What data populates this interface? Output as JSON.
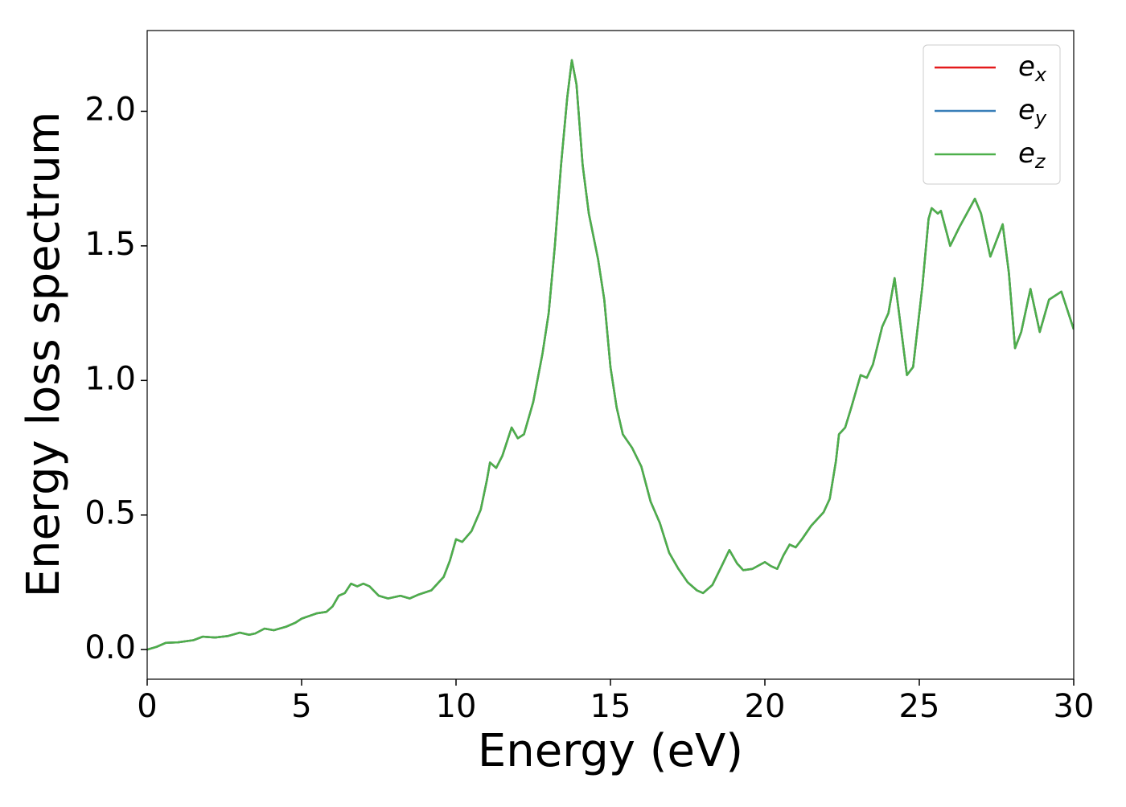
{
  "chart_data": {
    "type": "line",
    "xlabel": "Energy (eV)",
    "ylabel": "Energy loss spectrum",
    "x": [
      0,
      0.3,
      0.6,
      1.0,
      1.5,
      1.8,
      2.2,
      2.6,
      3.0,
      3.3,
      3.5,
      3.8,
      4.1,
      4.5,
      4.8,
      5.0,
      5.5,
      5.8,
      6.0,
      6.2,
      6.4,
      6.6,
      6.8,
      7.0,
      7.2,
      7.5,
      7.8,
      8.2,
      8.5,
      8.8,
      9.2,
      9.6,
      9.8,
      10.0,
      10.2,
      10.5,
      10.8,
      11.0,
      11.1,
      11.3,
      11.5,
      11.8,
      12.0,
      12.2,
      12.5,
      12.8,
      13.0,
      13.2,
      13.4,
      13.6,
      13.75,
      13.9,
      14.1,
      14.3,
      14.6,
      14.8,
      15.0,
      15.2,
      15.4,
      15.7,
      16.0,
      16.3,
      16.6,
      16.9,
      17.2,
      17.5,
      17.8,
      18.0,
      18.3,
      18.6,
      18.85,
      19.1,
      19.3,
      19.6,
      20.0,
      20.2,
      20.4,
      20.6,
      20.8,
      21.0,
      21.2,
      21.5,
      21.9,
      22.1,
      22.3,
      22.4,
      22.6,
      22.8,
      23.1,
      23.3,
      23.5,
      23.8,
      24.0,
      24.2,
      24.4,
      24.6,
      24.8,
      25.1,
      25.3,
      25.4,
      25.6,
      25.7,
      26.0,
      26.3,
      26.8,
      27.0,
      27.3,
      27.7,
      27.9,
      28.1,
      28.3,
      28.6,
      28.9,
      29.2,
      29.6,
      30.0
    ],
    "series": [
      {
        "name": "ex",
        "color": "#e41a1c",
        "values": [
          0,
          0.01,
          0.025,
          0.027,
          0.035,
          0.048,
          0.045,
          0.05,
          0.063,
          0.055,
          0.06,
          0.078,
          0.072,
          0.085,
          0.1,
          0.115,
          0.135,
          0.14,
          0.16,
          0.2,
          0.21,
          0.245,
          0.235,
          0.245,
          0.235,
          0.2,
          0.19,
          0.2,
          0.19,
          0.205,
          0.22,
          0.27,
          0.33,
          0.41,
          0.4,
          0.44,
          0.52,
          0.63,
          0.695,
          0.675,
          0.72,
          0.825,
          0.785,
          0.8,
          0.92,
          1.1,
          1.25,
          1.5,
          1.8,
          2.05,
          2.19,
          2.1,
          1.8,
          1.62,
          1.45,
          1.3,
          1.05,
          0.9,
          0.8,
          0.75,
          0.68,
          0.55,
          0.47,
          0.36,
          0.3,
          0.25,
          0.22,
          0.21,
          0.24,
          0.31,
          0.37,
          0.32,
          0.295,
          0.3,
          0.325,
          0.31,
          0.3,
          0.35,
          0.39,
          0.38,
          0.41,
          0.46,
          0.51,
          0.56,
          0.7,
          0.8,
          0.825,
          0.9,
          1.02,
          1.01,
          1.06,
          1.2,
          1.25,
          1.38,
          1.2,
          1.02,
          1.05,
          1.35,
          1.6,
          1.64,
          1.62,
          1.63,
          1.5,
          1.57,
          1.675,
          1.62,
          1.46,
          1.58,
          1.4,
          1.12,
          1.18,
          1.34,
          1.18,
          1.3,
          1.33,
          1.19
        ]
      },
      {
        "name": "ey",
        "color": "#377eb8",
        "values": [
          0,
          0.01,
          0.025,
          0.027,
          0.035,
          0.048,
          0.045,
          0.05,
          0.063,
          0.055,
          0.06,
          0.078,
          0.072,
          0.085,
          0.1,
          0.115,
          0.135,
          0.14,
          0.16,
          0.2,
          0.21,
          0.245,
          0.235,
          0.245,
          0.235,
          0.2,
          0.19,
          0.2,
          0.19,
          0.205,
          0.22,
          0.27,
          0.33,
          0.41,
          0.4,
          0.44,
          0.52,
          0.63,
          0.695,
          0.675,
          0.72,
          0.825,
          0.785,
          0.8,
          0.92,
          1.1,
          1.25,
          1.5,
          1.8,
          2.05,
          2.19,
          2.1,
          1.8,
          1.62,
          1.45,
          1.3,
          1.05,
          0.9,
          0.8,
          0.75,
          0.68,
          0.55,
          0.47,
          0.36,
          0.3,
          0.25,
          0.22,
          0.21,
          0.24,
          0.31,
          0.37,
          0.32,
          0.295,
          0.3,
          0.325,
          0.31,
          0.3,
          0.35,
          0.39,
          0.38,
          0.41,
          0.46,
          0.51,
          0.56,
          0.7,
          0.8,
          0.825,
          0.9,
          1.02,
          1.01,
          1.06,
          1.2,
          1.25,
          1.38,
          1.2,
          1.02,
          1.05,
          1.35,
          1.6,
          1.64,
          1.62,
          1.63,
          1.5,
          1.57,
          1.675,
          1.62,
          1.46,
          1.58,
          1.4,
          1.12,
          1.18,
          1.34,
          1.18,
          1.3,
          1.33,
          1.19
        ]
      },
      {
        "name": "ez",
        "color": "#4daf4a",
        "values": [
          0,
          0.01,
          0.025,
          0.027,
          0.035,
          0.048,
          0.045,
          0.05,
          0.063,
          0.055,
          0.06,
          0.078,
          0.072,
          0.085,
          0.1,
          0.115,
          0.135,
          0.14,
          0.16,
          0.2,
          0.21,
          0.245,
          0.235,
          0.245,
          0.235,
          0.2,
          0.19,
          0.2,
          0.19,
          0.205,
          0.22,
          0.27,
          0.33,
          0.41,
          0.4,
          0.44,
          0.52,
          0.63,
          0.695,
          0.675,
          0.72,
          0.825,
          0.785,
          0.8,
          0.92,
          1.1,
          1.25,
          1.5,
          1.8,
          2.05,
          2.19,
          2.1,
          1.8,
          1.62,
          1.45,
          1.3,
          1.05,
          0.9,
          0.8,
          0.75,
          0.68,
          0.55,
          0.47,
          0.36,
          0.3,
          0.25,
          0.22,
          0.21,
          0.24,
          0.31,
          0.37,
          0.32,
          0.295,
          0.3,
          0.325,
          0.31,
          0.3,
          0.35,
          0.39,
          0.38,
          0.41,
          0.46,
          0.51,
          0.56,
          0.7,
          0.8,
          0.825,
          0.9,
          1.02,
          1.01,
          1.06,
          1.2,
          1.25,
          1.38,
          1.2,
          1.02,
          1.05,
          1.35,
          1.6,
          1.64,
          1.62,
          1.63,
          1.5,
          1.57,
          1.675,
          1.62,
          1.46,
          1.58,
          1.4,
          1.12,
          1.18,
          1.34,
          1.18,
          1.3,
          1.33,
          1.19
        ]
      }
    ],
    "xlim": [
      0,
      30
    ],
    "xticks": [
      0,
      5,
      10,
      15,
      20,
      25,
      30
    ],
    "ylim": [
      -0.11,
      2.3
    ],
    "yticks": [
      {
        "value": 0,
        "label": "0.0"
      },
      0.5,
      {
        "value": 1,
        "label": "1.0"
      },
      1.5,
      {
        "value": 2,
        "label": "2.0"
      }
    ],
    "grid": false,
    "legend": "upper right"
  }
}
